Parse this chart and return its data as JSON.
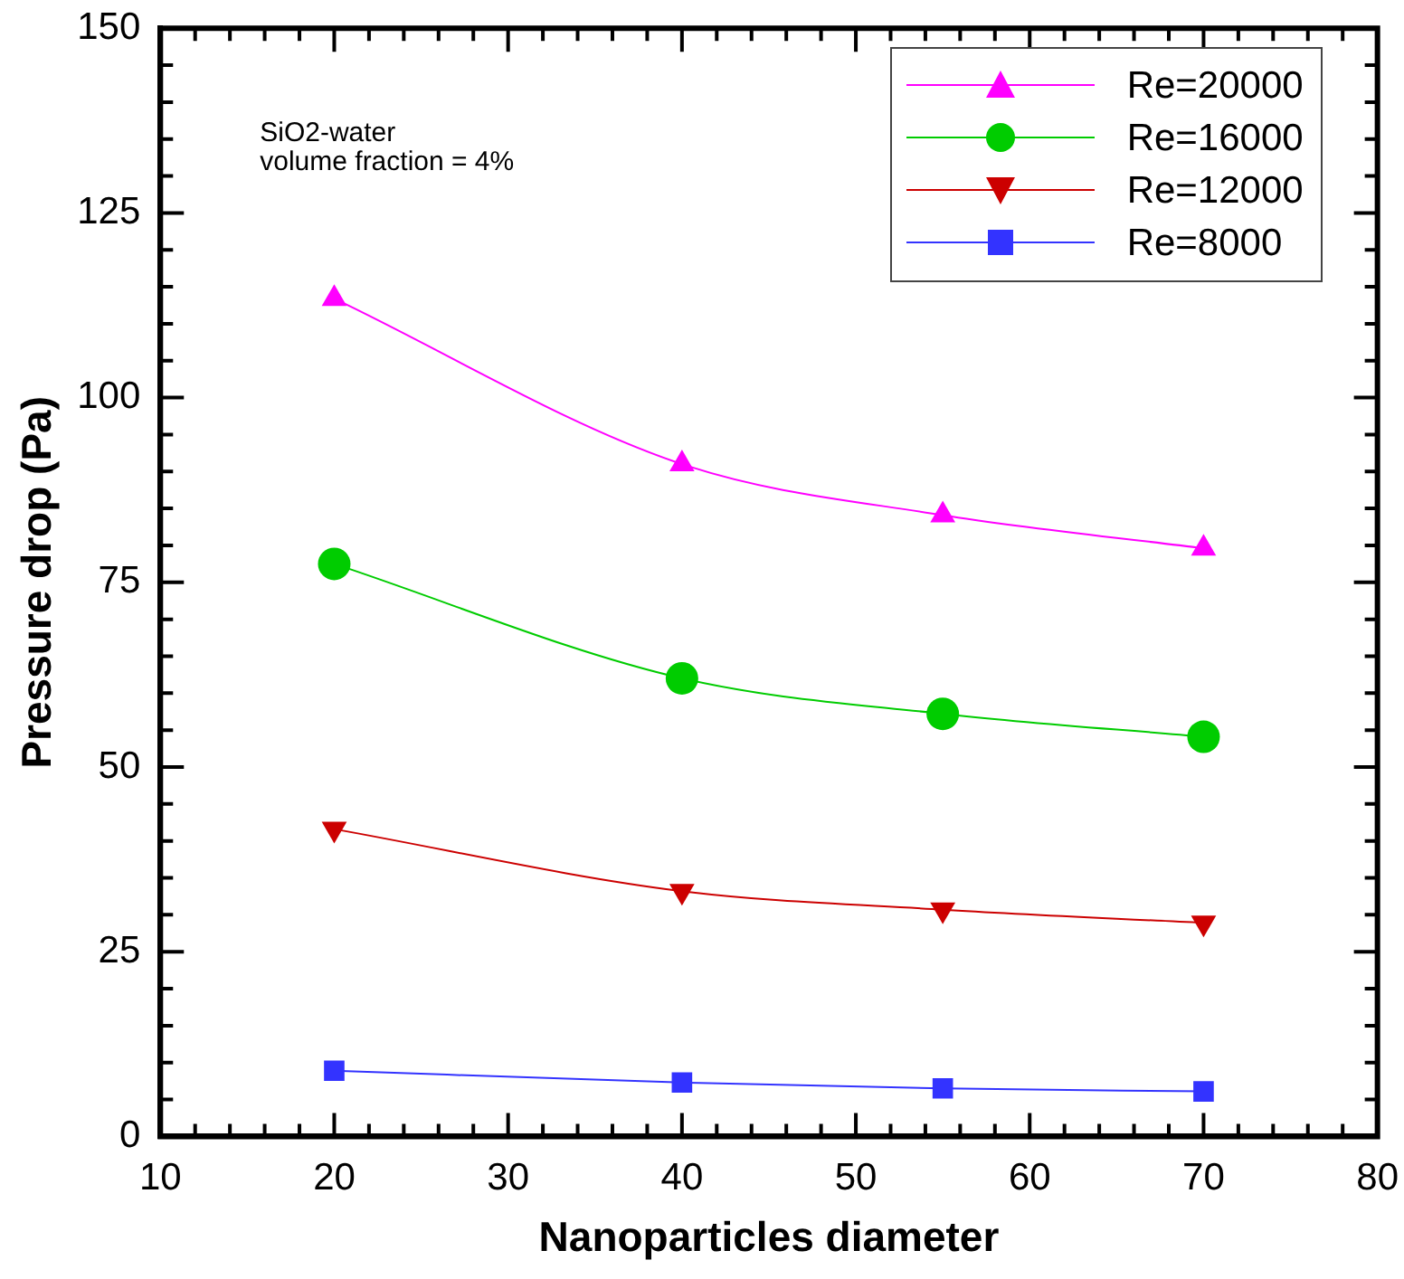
{
  "chart_data": {
    "type": "line",
    "xlabel": "Nanoparticles diameter",
    "ylabel": "Pressure drop (Pa)",
    "x": [
      20,
      40,
      55,
      70
    ],
    "series": [
      {
        "name": "Re=20000",
        "color": "#ff00ff",
        "marker": "triangle",
        "values": [
          113.4,
          91,
          84.1,
          79.6
        ]
      },
      {
        "name": "Re=16000",
        "color": "#00cc00",
        "marker": "circle",
        "values": [
          77.5,
          62,
          57.2,
          54.1
        ]
      },
      {
        "name": "Re=12000",
        "color": "#cc0000",
        "marker": "triangle-down",
        "values": [
          41.6,
          33.2,
          30.7,
          28.9
        ]
      },
      {
        "name": "Re=8000",
        "color": "#3333ff",
        "marker": "square",
        "values": [
          8.9,
          7.3,
          6.5,
          6.1
        ]
      }
    ],
    "xlim": [
      10,
      80
    ],
    "ylim": [
      0,
      150
    ],
    "xticks": [
      10,
      {
        "value": 12,
        "label": null
      },
      {
        "value": 14,
        "label": null
      },
      {
        "value": 16,
        "label": null
      },
      {
        "value": 18,
        "label": null
      },
      20,
      {
        "value": 22,
        "label": null
      },
      {
        "value": 24,
        "label": null
      },
      {
        "value": 26,
        "label": null
      },
      {
        "value": 28,
        "label": null
      },
      30,
      {
        "value": 32,
        "label": null
      },
      {
        "value": 34,
        "label": null
      },
      {
        "value": 36,
        "label": null
      },
      {
        "value": 38,
        "label": null
      },
      40,
      {
        "value": 42,
        "label": null
      },
      {
        "value": 44,
        "label": null
      },
      {
        "value": 46,
        "label": null
      },
      {
        "value": 48,
        "label": null
      },
      50,
      {
        "value": 52,
        "label": null
      },
      {
        "value": 54,
        "label": null
      },
      {
        "value": 56,
        "label": null
      },
      {
        "value": 58,
        "label": null
      },
      60,
      {
        "value": 62,
        "label": null
      },
      {
        "value": 64,
        "label": null
      },
      {
        "value": 66,
        "label": null
      },
      {
        "value": 68,
        "label": null
      },
      70,
      {
        "value": 72,
        "label": null
      },
      {
        "value": 74,
        "label": null
      },
      {
        "value": 76,
        "label": null
      },
      {
        "value": 78,
        "label": null
      },
      80
    ],
    "yticks": [
      0,
      {
        "value": 5,
        "label": null
      },
      {
        "value": 10,
        "label": null
      },
      {
        "value": 15,
        "label": null
      },
      {
        "value": 20,
        "label": null
      },
      25,
      {
        "value": 30,
        "label": null
      },
      {
        "value": 35,
        "label": null
      },
      {
        "value": 40,
        "label": null
      },
      {
        "value": 45,
        "label": null
      },
      50,
      {
        "value": 55,
        "label": null
      },
      {
        "value": 60,
        "label": null
      },
      {
        "value": 65,
        "label": null
      },
      {
        "value": 70,
        "label": null
      },
      75,
      {
        "value": 80,
        "label": null
      },
      {
        "value": 85,
        "label": null
      },
      {
        "value": 90,
        "label": null
      },
      {
        "value": 95,
        "label": null
      },
      100,
      {
        "value": 105,
        "label": null
      },
      {
        "value": 110,
        "label": null
      },
      {
        "value": 115,
        "label": null
      },
      {
        "value": 120,
        "label": null
      },
      125,
      {
        "value": 130,
        "label": null
      },
      {
        "value": 135,
        "label": null
      },
      {
        "value": 140,
        "label": null
      },
      {
        "value": 145,
        "label": null
      },
      150
    ],
    "legend": "top right",
    "line_style": "solid",
    "annotations": [
      "SiO2-water",
      "volume fraction = 4%"
    ]
  }
}
